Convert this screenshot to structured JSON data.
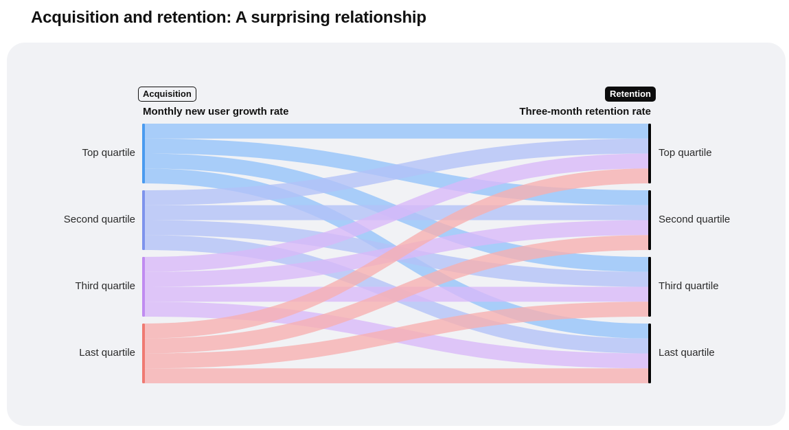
{
  "title": "Acquisition and retention: A surprising relationship",
  "left_tag": "Acquisition",
  "right_tag": "Retention",
  "left_subtitle": "Monthly new user growth rate",
  "right_subtitle": "Three-month retention rate",
  "colors": {
    "top": "#94c3fa",
    "second": "#b2c2f7",
    "third": "#d9b8f8",
    "last": "#f7b0b0",
    "top_bar": "#4a9bef",
    "second_bar": "#7e93ec",
    "third_bar": "#c08bf0",
    "last_bar": "#ef7a72",
    "right_bar": "#000000"
  },
  "chart_data": {
    "type": "sankey",
    "source_nodes": [
      "Top quartile",
      "Second quartile",
      "Third quartile",
      "Last quartile"
    ],
    "target_nodes": [
      "Top quartile",
      "Second quartile",
      "Third quartile",
      "Last quartile"
    ],
    "flows": [
      {
        "from": "Top quartile",
        "to": "Top quartile",
        "value": 1
      },
      {
        "from": "Top quartile",
        "to": "Second quartile",
        "value": 1
      },
      {
        "from": "Top quartile",
        "to": "Third quartile",
        "value": 1
      },
      {
        "from": "Top quartile",
        "to": "Last quartile",
        "value": 1
      },
      {
        "from": "Second quartile",
        "to": "Top quartile",
        "value": 1
      },
      {
        "from": "Second quartile",
        "to": "Second quartile",
        "value": 1
      },
      {
        "from": "Second quartile",
        "to": "Third quartile",
        "value": 1
      },
      {
        "from": "Second quartile",
        "to": "Last quartile",
        "value": 1
      },
      {
        "from": "Third quartile",
        "to": "Top quartile",
        "value": 1
      },
      {
        "from": "Third quartile",
        "to": "Second quartile",
        "value": 1
      },
      {
        "from": "Third quartile",
        "to": "Third quartile",
        "value": 1
      },
      {
        "from": "Third quartile",
        "to": "Last quartile",
        "value": 1
      },
      {
        "from": "Last quartile",
        "to": "Top quartile",
        "value": 1
      },
      {
        "from": "Last quartile",
        "to": "Second quartile",
        "value": 1
      },
      {
        "from": "Last quartile",
        "to": "Third quartile",
        "value": 1
      },
      {
        "from": "Last quartile",
        "to": "Last quartile",
        "value": 1
      }
    ]
  }
}
